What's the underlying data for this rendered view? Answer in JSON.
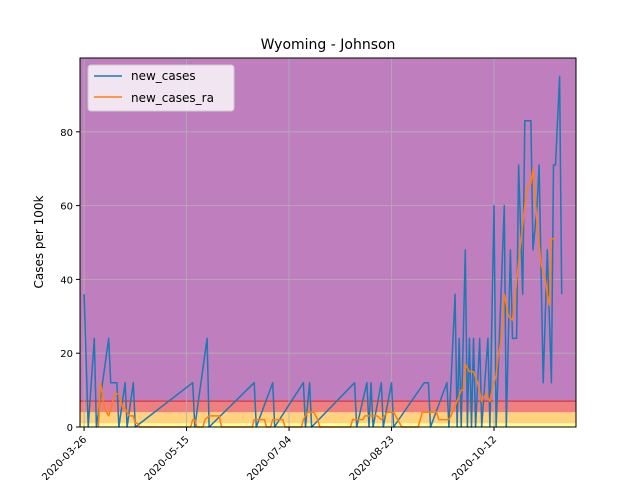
{
  "chart_data": {
    "type": "line",
    "title": "Wyoming - Johnson",
    "xlabel": "",
    "ylabel": "Cases per 100k",
    "x_tick_labels": [
      "2020-03-26",
      "2020-05-15",
      "2020-07-04",
      "2020-08-23",
      "2020-10-12"
    ],
    "x_tick_days": [
      0,
      50,
      100,
      150,
      200
    ],
    "x_range_days": [
      -2,
      240
    ],
    "xlim": [
      "2020-03-24",
      "2020-11-21"
    ],
    "ylim": [
      0,
      100
    ],
    "y_ticks": [
      0,
      20,
      40,
      60,
      80
    ],
    "grid": true,
    "legend_position": "top-left",
    "background_bands": [
      {
        "from": 0,
        "to": 1,
        "color": "#ffff99"
      },
      {
        "from": 1,
        "to": 4,
        "color": "#ffd27f"
      },
      {
        "from": 4,
        "to": 7,
        "color": "#f08080"
      },
      {
        "from": 7,
        "to": 100,
        "color": "#bf7fbf"
      }
    ],
    "band_line": {
      "y": 7,
      "color": "#d62728"
    },
    "series": [
      {
        "name": "new_cases",
        "color": "#1f77b4",
        "points": [
          [
            0,
            36
          ],
          [
            2,
            0
          ],
          [
            5,
            24
          ],
          [
            6,
            0
          ],
          [
            12,
            24
          ],
          [
            13,
            12
          ],
          [
            16,
            12
          ],
          [
            17,
            0
          ],
          [
            20,
            12
          ],
          [
            21,
            0
          ],
          [
            24,
            12
          ],
          [
            25,
            0
          ],
          [
            53,
            12
          ],
          [
            54,
            0
          ],
          [
            60,
            24
          ],
          [
            61,
            0
          ],
          [
            83,
            12
          ],
          [
            84,
            0
          ],
          [
            92,
            12
          ],
          [
            93,
            0
          ],
          [
            107,
            12
          ],
          [
            108,
            0
          ],
          [
            110,
            12
          ],
          [
            111,
            0
          ],
          [
            132,
            12
          ],
          [
            133,
            0
          ],
          [
            138,
            12
          ],
          [
            139,
            0
          ],
          [
            140,
            12
          ],
          [
            141,
            0
          ],
          [
            145,
            12
          ],
          [
            146,
            0
          ],
          [
            150,
            12
          ],
          [
            151,
            0
          ],
          [
            166,
            12
          ],
          [
            168,
            12
          ],
          [
            169,
            0
          ],
          [
            177,
            12
          ],
          [
            178,
            0
          ],
          [
            181,
            36
          ],
          [
            182,
            0
          ],
          [
            183,
            24
          ],
          [
            184,
            0
          ],
          [
            186,
            48
          ],
          [
            187,
            0
          ],
          [
            188,
            24
          ],
          [
            189,
            0
          ],
          [
            190,
            24
          ],
          [
            191,
            0
          ],
          [
            193,
            24
          ],
          [
            194,
            0
          ],
          [
            197,
            24
          ],
          [
            198,
            0
          ],
          [
            200,
            60
          ],
          [
            201,
            0
          ],
          [
            205,
            60
          ],
          [
            206,
            0
          ],
          [
            208,
            48
          ],
          [
            209,
            24
          ],
          [
            211,
            24
          ],
          [
            212,
            71
          ],
          [
            214,
            36
          ],
          [
            215,
            83
          ],
          [
            218,
            83
          ],
          [
            219,
            48
          ],
          [
            221,
            60
          ],
          [
            222,
            71
          ],
          [
            224,
            12
          ],
          [
            226,
            48
          ],
          [
            228,
            12
          ],
          [
            229,
            71
          ],
          [
            230,
            71
          ],
          [
            232,
            95
          ],
          [
            233,
            36
          ]
        ]
      },
      {
        "name": "new_cases_ra",
        "color": "#ff7f0e",
        "points": [
          [
            7,
            0
          ],
          [
            8,
            12
          ],
          [
            10,
            5
          ],
          [
            12,
            3
          ],
          [
            15,
            9
          ],
          [
            17,
            9
          ],
          [
            19,
            5
          ],
          [
            20,
            5
          ],
          [
            22,
            3
          ],
          [
            24,
            3
          ],
          [
            25,
            1
          ],
          [
            26,
            1
          ],
          [
            27,
            0
          ],
          [
            52,
            0
          ],
          [
            53,
            2
          ],
          [
            54,
            2
          ],
          [
            55,
            0
          ],
          [
            58,
            0
          ],
          [
            59,
            2
          ],
          [
            61,
            3
          ],
          [
            66,
            3
          ],
          [
            67,
            0
          ],
          [
            82,
            0
          ],
          [
            83,
            2
          ],
          [
            84,
            2
          ],
          [
            88,
            2
          ],
          [
            89,
            0
          ],
          [
            91,
            0
          ],
          [
            92,
            2
          ],
          [
            97,
            2
          ],
          [
            98,
            0
          ],
          [
            106,
            0
          ],
          [
            107,
            2
          ],
          [
            109,
            4
          ],
          [
            112,
            4
          ],
          [
            114,
            2
          ],
          [
            115,
            0
          ],
          [
            130,
            0
          ],
          [
            131,
            2
          ],
          [
            136,
            2
          ],
          [
            137,
            3
          ],
          [
            143,
            3
          ],
          [
            145,
            2
          ],
          [
            148,
            4
          ],
          [
            151,
            4
          ],
          [
            153,
            2
          ],
          [
            155,
            0
          ],
          [
            163,
            0
          ],
          [
            165,
            4
          ],
          [
            172,
            4
          ],
          [
            173,
            2
          ],
          [
            178,
            2
          ],
          [
            179,
            3
          ],
          [
            182,
            7
          ],
          [
            184,
            10
          ],
          [
            185,
            10
          ],
          [
            186,
            17
          ],
          [
            188,
            15
          ],
          [
            190,
            15
          ],
          [
            192,
            12
          ],
          [
            194,
            7
          ],
          [
            196,
            9
          ],
          [
            198,
            7
          ],
          [
            199,
            10
          ],
          [
            201,
            14
          ],
          [
            202,
            19
          ],
          [
            203,
            22
          ],
          [
            204,
            27
          ],
          [
            205,
            36
          ],
          [
            207,
            30
          ],
          [
            209,
            29
          ],
          [
            210,
            34
          ],
          [
            213,
            50
          ],
          [
            215,
            60
          ],
          [
            216,
            65
          ],
          [
            218,
            66
          ],
          [
            219,
            70
          ],
          [
            221,
            55
          ],
          [
            223,
            44
          ],
          [
            225,
            40
          ],
          [
            226,
            36
          ],
          [
            227,
            33
          ],
          [
            228,
            51
          ],
          [
            230,
            51
          ]
        ]
      }
    ]
  }
}
